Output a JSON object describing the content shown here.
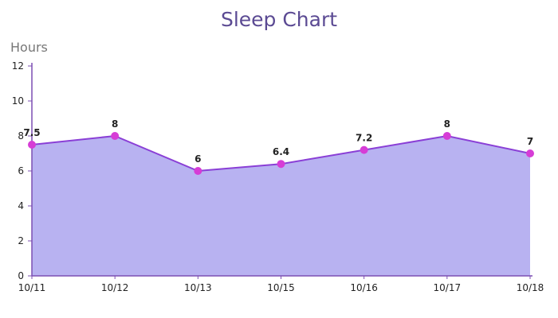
{
  "chart_data": {
    "type": "area",
    "title": "Sleep Chart",
    "ylabel": "Hours",
    "xlabel": "",
    "categories": [
      "10/11",
      "10/12",
      "10/13",
      "10/15",
      "10/16",
      "10/17",
      "10/18"
    ],
    "values": [
      7.5,
      8,
      6,
      6.4,
      7.2,
      8,
      7
    ],
    "data_labels": [
      "7.5",
      "8",
      "6",
      "6.4",
      "7.2",
      "8",
      "7"
    ],
    "ylim": [
      0,
      12
    ],
    "yticks": [
      0,
      2,
      4,
      6,
      8,
      10,
      12
    ],
    "grid": false,
    "legend": "none",
    "colors": {
      "fill": "#b8b2f1",
      "line": "#8a3fd6",
      "marker": "#d63dd6",
      "axis": "#7c4fb3",
      "title": "#5b4a93"
    }
  }
}
